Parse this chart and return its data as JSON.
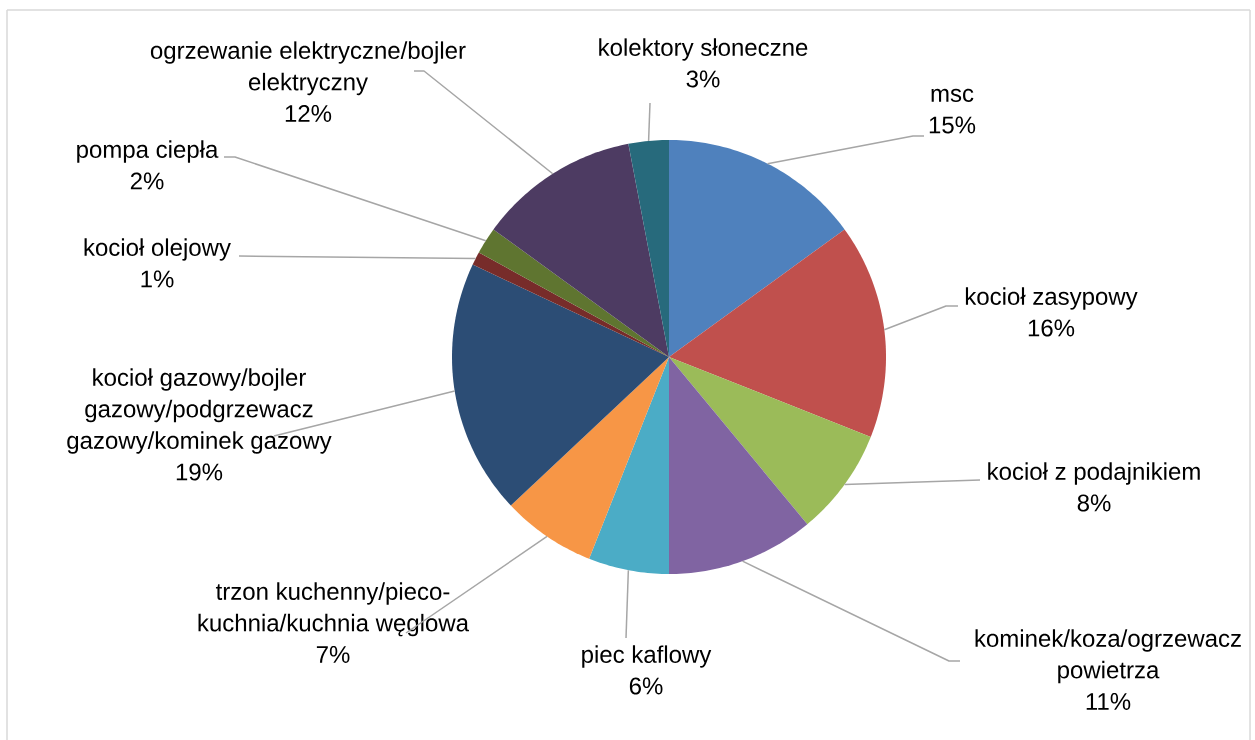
{
  "chart_data": {
    "type": "pie",
    "categories": [
      "msc",
      "kocioł zasypowy",
      "kocioł z podajnikiem",
      "kominek/koza/ogrzewacz powietrza",
      "piec kaflowy",
      "trzon kuchenny/pieco-kuchnia/kuchnia węglowa",
      "kocioł gazowy/bojler gazowy/podgrzewacz gazowy/kominek gazowy",
      "kocioł olejowy",
      "pompa ciepła",
      "ogrzewanie elektryczne/bojler elektryczny",
      "kolektory słoneczne"
    ],
    "values": [
      15,
      16,
      8,
      11,
      6,
      7,
      19,
      1,
      2,
      12,
      3
    ],
    "colors": [
      "#4f81bd",
      "#c0504d",
      "#9bbb59",
      "#8064a2",
      "#4bacc6",
      "#f79646",
      "#2c4d75",
      "#772c2a",
      "#5f7530",
      "#4d3b62",
      "#276a7c"
    ],
    "value_labels": [
      "15%",
      "16%",
      "8%",
      "11%",
      "6%",
      "7%",
      "19%",
      "1%",
      "2%",
      "12%",
      "3%"
    ]
  }
}
